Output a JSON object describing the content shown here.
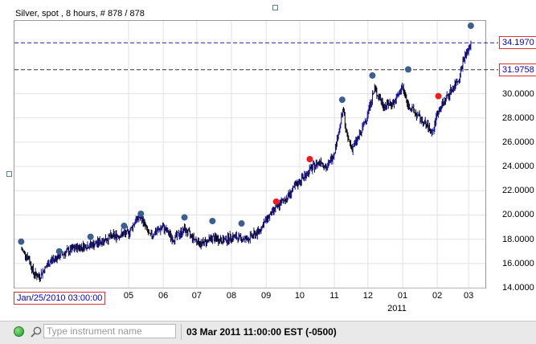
{
  "chart": {
    "title": "Silver, spot , 8 hours, # 878 / 878",
    "start_date": "Jan/25/2010 03:00:00",
    "x_tick_labels": [
      "05",
      "06",
      "07",
      "08",
      "09",
      "10",
      "11",
      "12",
      "01",
      "02",
      "03"
    ],
    "year_label": "2011",
    "y_tick_labels": [
      "14.0000",
      "16.0000",
      "18.0000",
      "20.0000",
      "22.0000",
      "24.0000",
      "26.0000",
      "28.0000",
      "30.0000"
    ],
    "price_lines": [
      {
        "label": "34.1970",
        "value": 34.197,
        "color": "#2020a0"
      },
      {
        "label": "31.9758",
        "value": 31.9758,
        "color": "#303030"
      }
    ]
  },
  "chart_data": {
    "type": "line",
    "title": "Silver, spot , 8 hours, # 878 / 878",
    "x_range": [
      "2010-01-25",
      "2011-03-03"
    ],
    "ylim": [
      14,
      36
    ],
    "grid": true,
    "series": [
      {
        "x": [
          "2010-01-25",
          "2010-02-01",
          "2010-02-05",
          "2010-02-10",
          "2010-02-20",
          "2010-03-01",
          "2010-03-15",
          "2010-04-01",
          "2010-04-15",
          "2010-05-01",
          "2010-05-07",
          "2010-05-12",
          "2010-05-20",
          "2010-05-25",
          "2010-06-01",
          "2010-06-10",
          "2010-06-20",
          "2010-06-28",
          "2010-07-05",
          "2010-07-15",
          "2010-07-25",
          "2010-08-01",
          "2010-08-15",
          "2010-08-25",
          "2010-09-01",
          "2010-09-10",
          "2010-09-20",
          "2010-10-01",
          "2010-10-10",
          "2010-10-20",
          "2010-10-25",
          "2010-11-01",
          "2010-11-09",
          "2010-11-12",
          "2010-11-17",
          "2010-11-25",
          "2010-12-01",
          "2010-12-07",
          "2010-12-15",
          "2010-12-25",
          "2011-01-01",
          "2011-01-05",
          "2011-01-15",
          "2011-01-28",
          "2011-02-01",
          "2011-02-10",
          "2011-02-20",
          "2011-02-25",
          "2011-03-01",
          "2011-03-03"
        ],
        "y": [
          17.2,
          16.4,
          15.2,
          14.9,
          16.2,
          16.7,
          17.3,
          17.6,
          18.2,
          18.5,
          19.5,
          19.9,
          18.2,
          18.6,
          19.0,
          18.0,
          18.8,
          18.1,
          17.6,
          18.1,
          17.9,
          18.2,
          18.0,
          18.6,
          19.6,
          20.6,
          21.5,
          22.8,
          23.7,
          24.5,
          23.8,
          25.2,
          28.7,
          26.5,
          25.5,
          26.8,
          28.5,
          30.4,
          29.0,
          29.3,
          30.6,
          29.2,
          28.1,
          26.8,
          28.4,
          29.8,
          31.2,
          33.0,
          33.6,
          34.2
        ]
      }
    ],
    "markers": {
      "blue": [
        {
          "x": "2010-01-25",
          "y": 17.8
        },
        {
          "x": "2010-02-28",
          "y": 17.0
        },
        {
          "x": "2010-03-28",
          "y": 18.2
        },
        {
          "x": "2010-04-27",
          "y": 19.1
        },
        {
          "x": "2010-05-12",
          "y": 20.1
        },
        {
          "x": "2010-06-20",
          "y": 19.8
        },
        {
          "x": "2010-07-15",
          "y": 19.5
        },
        {
          "x": "2010-08-10",
          "y": 19.3
        },
        {
          "x": "2010-11-08",
          "y": 29.5
        },
        {
          "x": "2010-12-05",
          "y": 31.5
        },
        {
          "x": "2011-01-06",
          "y": 32.0
        },
        {
          "x": "2011-03-03",
          "y": 35.6
        }
      ],
      "red": [
        {
          "x": "2010-09-10",
          "y": 21.1
        },
        {
          "x": "2010-10-10",
          "y": 24.6
        },
        {
          "x": "2011-02-02",
          "y": 29.8
        }
      ]
    }
  },
  "bottom_bar": {
    "search_placeholder": "Type instrument name",
    "timestamp": "03 Mar 2011 11:00:00  EST (-0500)"
  }
}
